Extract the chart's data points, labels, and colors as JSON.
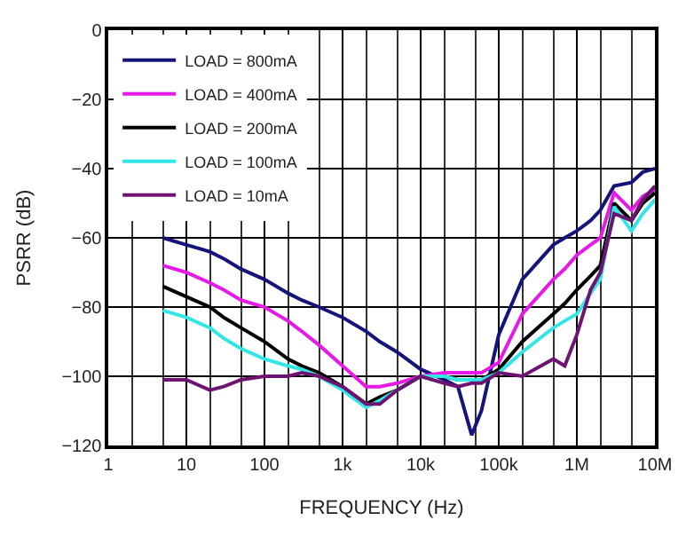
{
  "chart_data": {
    "type": "line",
    "xlabel": "FREQUENCY (Hz)",
    "ylabel": "PSRR (dB)",
    "log": "x",
    "grid": true,
    "legend": "top left",
    "marker": "none",
    "line_style": "solid",
    "xlim": [
      1,
      10000000
    ],
    "ylim": [
      -120,
      0
    ],
    "xticks": [
      1,
      10,
      100,
      {
        "value": 1000,
        "label": "1k"
      },
      {
        "value": 10000,
        "label": "10k"
      },
      {
        "value": 100000,
        "label": "100k"
      },
      {
        "value": 1000000,
        "label": "1M"
      },
      {
        "value": 10000000,
        "label": "10M"
      }
    ],
    "yticks": [
      -120,
      -100,
      -80,
      -60,
      -40,
      -20,
      0
    ],
    "x": [
      5,
      10,
      20,
      30,
      50,
      100,
      200,
      300,
      500,
      1000,
      2000,
      3000,
      5000,
      10000,
      20000,
      30000,
      45000,
      60000,
      100000,
      200000,
      500000,
      700000,
      1000000,
      1500000,
      2000000,
      3000000,
      5000000,
      7000000,
      10000000
    ],
    "series": [
      {
        "name": "LOAD = 800mA",
        "color": "#14147a",
        "values": [
          -60,
          -62,
          -64,
          -66,
          -69,
          -72,
          -76,
          -78,
          -80,
          -83,
          -87,
          -90,
          -93,
          -98,
          -101,
          -103,
          -117,
          -110,
          -88,
          -72,
          -62,
          -60,
          -58,
          -55,
          -52,
          -45,
          -44,
          -41,
          -40
        ]
      },
      {
        "name": "LOAD = 400mA",
        "color": "#e619e6",
        "values": [
          -68,
          -70,
          -73,
          -75,
          -78,
          -80,
          -84,
          -87,
          -91,
          -97,
          -103,
          -103,
          -102,
          -100,
          -99,
          -99,
          -99,
          -99,
          -96,
          -82,
          -72,
          -69,
          -65,
          -62,
          -60,
          -47,
          -52,
          -48,
          -46
        ]
      },
      {
        "name": "LOAD = 200mA",
        "color": "#000000",
        "values": [
          -74,
          -77,
          -80,
          -83,
          -86,
          -90,
          -95,
          -97,
          -99,
          -103,
          -108,
          -106,
          -104,
          -100,
          -100,
          -101,
          -101,
          -101,
          -98,
          -90,
          -82,
          -79,
          -75,
          -71,
          -68,
          -50,
          -55,
          -50,
          -47
        ]
      },
      {
        "name": "LOAD = 100mA",
        "color": "#33e6e6",
        "values": [
          -81,
          -83,
          -86,
          -89,
          -92,
          -95,
          -97,
          -98,
          -100,
          -104,
          -109,
          -107,
          -104,
          -100,
          -100,
          -101,
          -101,
          -101,
          -99,
          -93,
          -86,
          -84,
          -82,
          -76,
          -72,
          -51,
          -58,
          -53,
          -49
        ]
      },
      {
        "name": "LOAD = 10mA",
        "color": "#6e1470",
        "values": [
          -101,
          -101,
          -104,
          -103,
          -101,
          -100,
          -100,
          -99,
          -100,
          -103,
          -108,
          -108,
          -104,
          -100,
          -102,
          -103,
          -102,
          -102,
          -99,
          -100,
          -95,
          -97,
          -88,
          -75,
          -70,
          -53,
          -55,
          -49,
          -45
        ]
      }
    ]
  }
}
